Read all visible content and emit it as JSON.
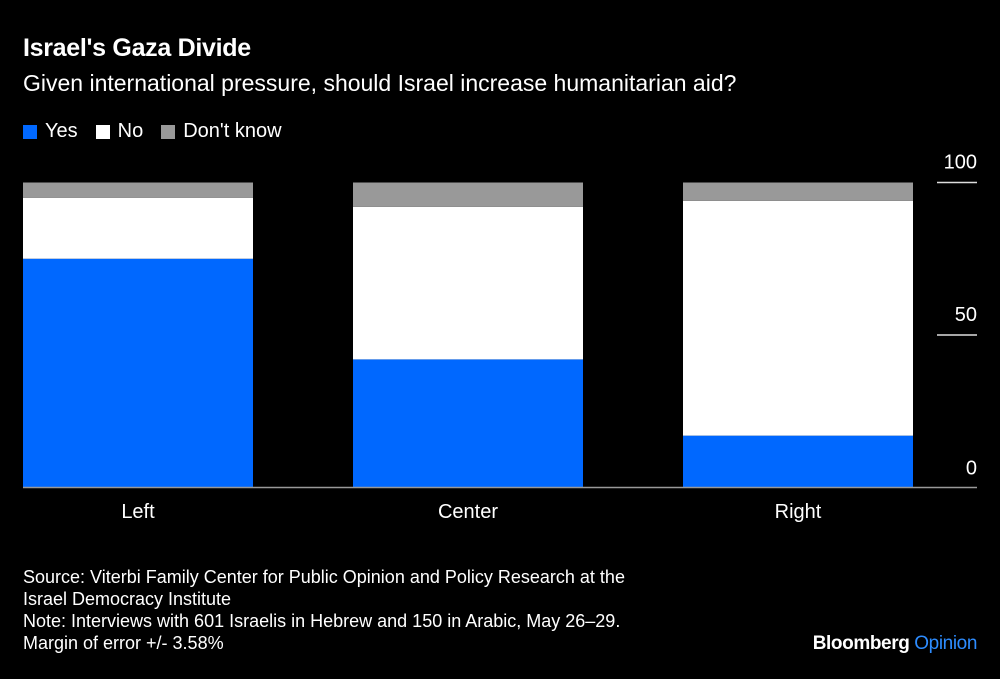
{
  "chart_data": {
    "type": "bar",
    "stacked": true,
    "title": "Israel's Gaza Divide",
    "subtitle": "Given international pressure, should Israel increase humanitarian aid?",
    "categories": [
      "Left",
      "Center",
      "Right"
    ],
    "series": [
      {
        "name": "Yes",
        "color": "#0068ff",
        "values": [
          75,
          42,
          17
        ]
      },
      {
        "name": "No",
        "color": "#ffffff",
        "values": [
          20,
          50,
          77
        ]
      },
      {
        "name": "Don't know",
        "color": "#999999",
        "values": [
          5,
          8,
          6
        ]
      }
    ],
    "ylim": [
      0,
      100
    ],
    "yticks": [
      "0",
      "50",
      "100"
    ],
    "ytick_values": [
      0,
      50,
      100
    ],
    "y_axis_position": "right",
    "legend_position": "top-left",
    "grid": false
  },
  "footer": {
    "source": "Source: Viterbi Family Center for Public Opinion and Policy Research at the Israel Democracy Institute",
    "source_line1": "Source: Viterbi Family Center for Public Opinion and Policy Research at the",
    "source_line2": "Israel Democracy Institute",
    "note_line1": "Note: Interviews with 601 Israelis in Hebrew and 150 in Arabic, May 26–29.",
    "note_line2": "Margin of error +/- 3.58%"
  },
  "brand": {
    "name": "Bloomberg",
    "section": "Opinion"
  }
}
